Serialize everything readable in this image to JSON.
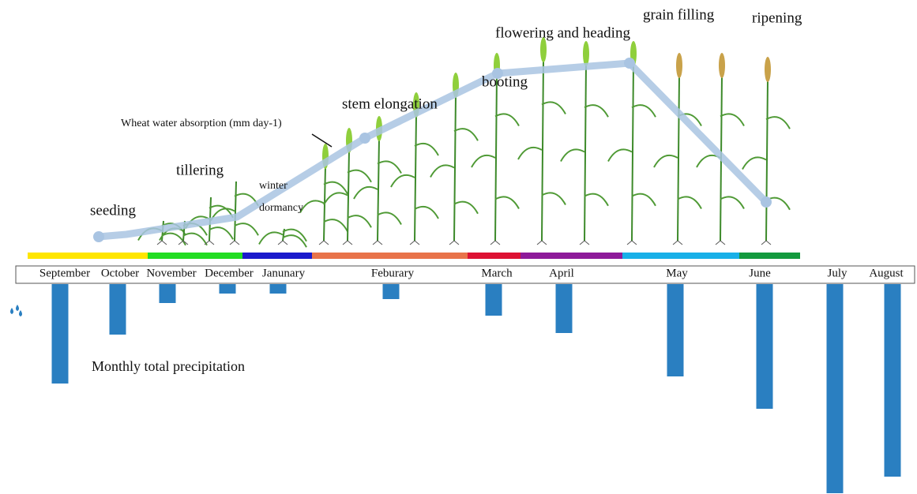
{
  "stages": [
    "seeding",
    "tillering",
    "winter",
    "dormancy",
    "stem elongation",
    "booting",
    "flowering and heading",
    "grain filling",
    "ripening"
  ],
  "annotations": {
    "water_absorption": "Wheat water absorption (mm day-1)",
    "precipitation": "Monthly total precipitation"
  },
  "precipitation": {
    "months": [
      "September",
      "October",
      "November",
      "December",
      "Janunary",
      "Feburary",
      "March",
      "April",
      "May",
      "June",
      "July",
      "August"
    ],
    "values": [
      126,
      64,
      24,
      12,
      12,
      19,
      40,
      62,
      117,
      158,
      265,
      244
    ],
    "color": "#2a7fc1"
  }
}
